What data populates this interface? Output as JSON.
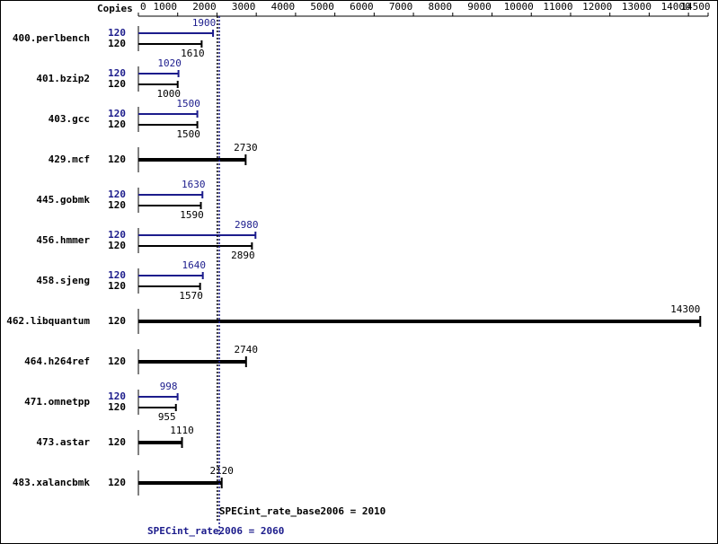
{
  "chart_data": {
    "type": "spec-bar",
    "x_title": "Copies",
    "xlim": [
      0,
      14500
    ],
    "xticks": [
      0,
      1000,
      2000,
      3000,
      4000,
      5000,
      6000,
      7000,
      8000,
      9000,
      10000,
      11000,
      12000,
      13000,
      14000,
      14500
    ],
    "categories": [
      "400.perlbench",
      "401.bzip2",
      "403.gcc",
      "429.mcf",
      "445.gobmk",
      "456.hmmer",
      "458.sjeng",
      "462.libquantum",
      "464.h264ref",
      "471.omnetpp",
      "473.astar",
      "483.xalancbmk"
    ],
    "series": [
      {
        "color": "#1c1c8c",
        "copies": [
          120,
          120,
          120,
          null,
          120,
          120,
          120,
          null,
          null,
          120,
          null,
          null
        ],
        "values": [
          1900,
          1020,
          1500,
          null,
          1630,
          2980,
          1640,
          null,
          null,
          998,
          null,
          null
        ]
      },
      {
        "color": "#000000",
        "copies": [
          120,
          120,
          120,
          120,
          120,
          120,
          120,
          120,
          120,
          120,
          120,
          120
        ],
        "values": [
          1610,
          1000,
          1500,
          2730,
          1590,
          2890,
          1570,
          14300,
          2740,
          955,
          1110,
          2120
        ]
      }
    ],
    "reference_lines": [
      {
        "label": "SPECint_rate_base2006 = 2010",
        "value": 2010,
        "color": "#000000"
      },
      {
        "label": "SPECint_rate2006 = 2060",
        "value": 2060,
        "color": "#1c1c8c"
      }
    ]
  }
}
